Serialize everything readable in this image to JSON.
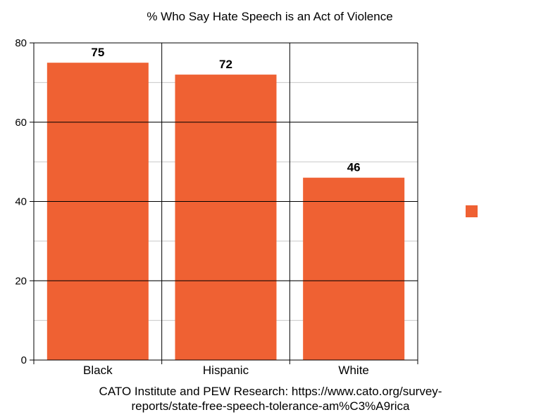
{
  "chart_data": {
    "type": "bar",
    "title": "% Who Say Hate Speech is an Act of Violence",
    "categories": [
      "Black",
      "Hispanic",
      "White"
    ],
    "values": [
      75,
      72,
      46
    ],
    "ylim": [
      0,
      80
    ],
    "yticks": [
      0,
      20,
      40,
      60,
      80
    ],
    "grid": true,
    "legend": "right",
    "series": [
      {
        "values": [
          75,
          72,
          46
        ],
        "color": "#ef6133"
      }
    ],
    "source_lines": [
      "CATO Institute and PEW Research: https://www.cato.org/survey-",
      "reports/state-free-speech-tolerance-am%C3%A9rica"
    ]
  },
  "colors": {
    "bar": "#ef6133",
    "grid": "#c8c8c8",
    "axis": "#000000"
  }
}
